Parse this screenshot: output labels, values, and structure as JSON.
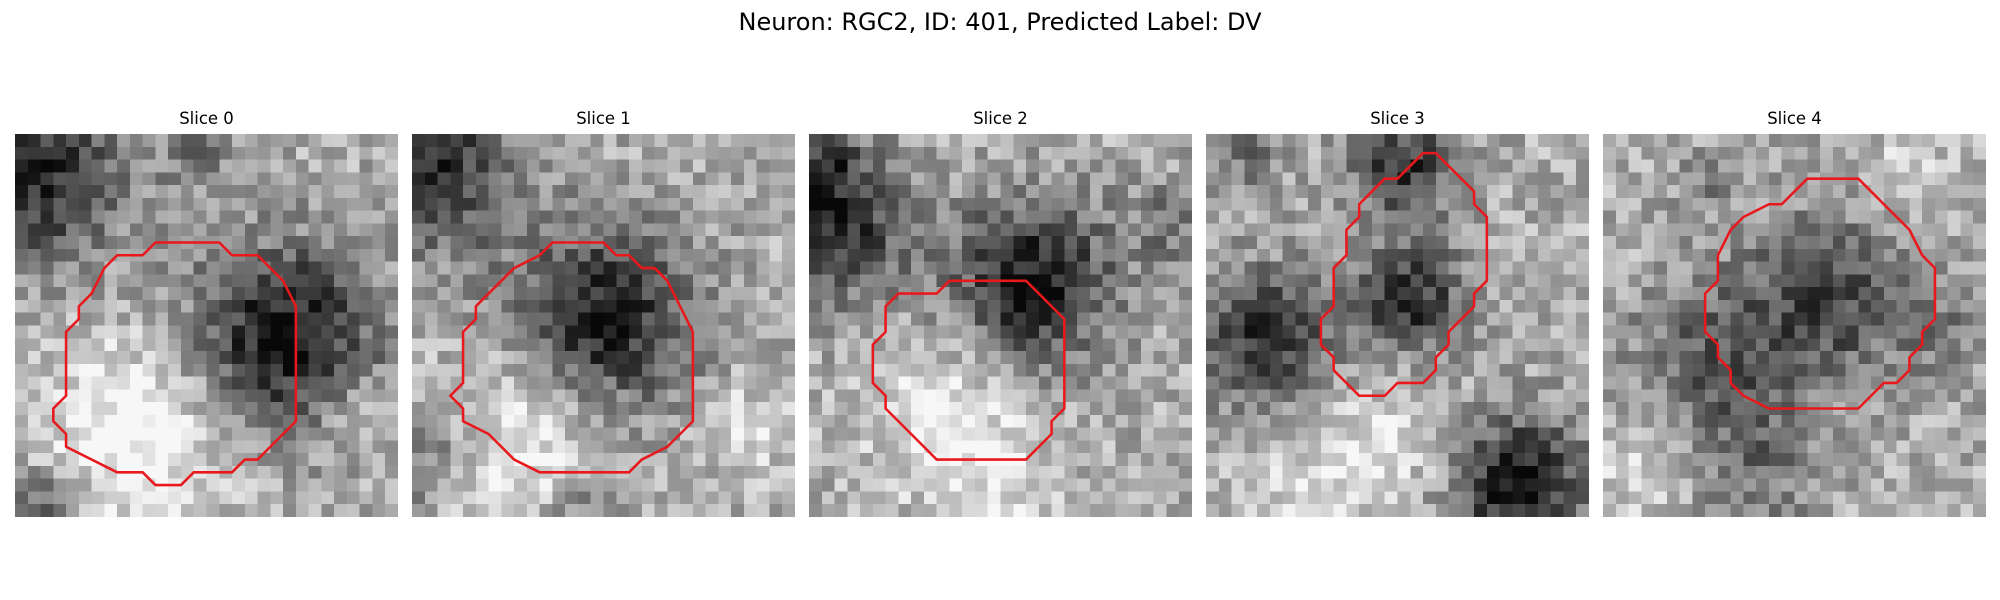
{
  "figure": {
    "title": "Neuron: RGC2, ID: 401, Predicted Label: DV"
  },
  "colors": {
    "contour": "#e8181c",
    "background": "#ffffff"
  },
  "grid_size": 30,
  "panels": [
    {
      "title": "Slice 0",
      "seed": 101,
      "blobs": [
        [
          21.0,
          16.0,
          8.2,
          0.62
        ],
        [
          1.5,
          3.0,
          8.0,
          0.55
        ],
        [
          2.5,
          29.0,
          4.0,
          0.35
        ],
        [
          14.5,
          1.5,
          3.0,
          0.2
        ]
      ],
      "brights": [
        [
          9.0,
          24.0,
          9.0,
          0.35
        ],
        [
          27.0,
          22.0,
          3.5,
          0.18
        ]
      ],
      "contour": [
        [
          11,
          8.5
        ],
        [
          16,
          8.5
        ],
        [
          17,
          9.5
        ],
        [
          19,
          9.5
        ],
        [
          21,
          11.5
        ],
        [
          22,
          13.5
        ],
        [
          22,
          22.5
        ],
        [
          20,
          24.5
        ],
        [
          19,
          25.5
        ],
        [
          18,
          25.5
        ],
        [
          17,
          26.5
        ],
        [
          14,
          26.5
        ],
        [
          13,
          27.5
        ],
        [
          11,
          27.5
        ],
        [
          10,
          26.5
        ],
        [
          8,
          26.5
        ],
        [
          4,
          24.5
        ],
        [
          4,
          23.5
        ],
        [
          3,
          22.5
        ],
        [
          3,
          21.5
        ],
        [
          4,
          20.5
        ],
        [
          4,
          15.5
        ],
        [
          5,
          14.5
        ],
        [
          5,
          13.5
        ],
        [
          6,
          12.5
        ],
        [
          7,
          10.5
        ],
        [
          8,
          9.5
        ],
        [
          10,
          9.5
        ]
      ]
    },
    {
      "title": "Slice 1",
      "seed": 211,
      "blobs": [
        [
          15.0,
          14.5,
          8.0,
          0.58
        ],
        [
          2.0,
          3.0,
          7.0,
          0.5
        ],
        [
          1.0,
          25.0,
          5.0,
          0.3
        ],
        [
          13.0,
          29.5,
          3.5,
          0.22
        ]
      ],
      "brights": [
        [
          8.0,
          24.0,
          8.0,
          0.3
        ],
        [
          26.0,
          23.0,
          4.0,
          0.2
        ]
      ],
      "contour": [
        [
          11,
          8.5
        ],
        [
          15,
          8.5
        ],
        [
          16,
          9.5
        ],
        [
          17,
          9.5
        ],
        [
          18,
          10.5
        ],
        [
          19,
          10.5
        ],
        [
          20,
          11.5
        ],
        [
          21,
          13.5
        ],
        [
          22,
          15.5
        ],
        [
          22,
          22.5
        ],
        [
          21,
          23.5
        ],
        [
          20,
          24.5
        ],
        [
          18,
          25.5
        ],
        [
          17,
          26.5
        ],
        [
          10,
          26.5
        ],
        [
          8,
          25.5
        ],
        [
          7,
          24.5
        ],
        [
          6,
          23.5
        ],
        [
          4,
          22.5
        ],
        [
          4,
          21.5
        ],
        [
          3,
          20.5
        ],
        [
          4,
          19.5
        ],
        [
          4,
          15.5
        ],
        [
          5,
          14.5
        ],
        [
          5,
          13.5
        ],
        [
          6,
          12.5
        ],
        [
          7,
          11.5
        ],
        [
          8,
          10.5
        ],
        [
          10,
          9.5
        ]
      ]
    },
    {
      "title": "Slice 2",
      "seed": 331,
      "blobs": [
        [
          17.5,
          11.5,
          7.0,
          0.6
        ],
        [
          2.0,
          7.0,
          6.5,
          0.55
        ],
        [
          1.5,
          1.5,
          3.0,
          0.25
        ],
        [
          28.5,
          7.0,
          4.0,
          0.2
        ]
      ],
      "brights": [
        [
          11.0,
          23.0,
          6.5,
          0.3
        ],
        [
          16.0,
          28.0,
          4.0,
          0.15
        ]
      ],
      "contour": [
        [
          11,
          11.5
        ],
        [
          17,
          11.5
        ],
        [
          18,
          12.5
        ],
        [
          19,
          13.5
        ],
        [
          20,
          14.5
        ],
        [
          20,
          21.5
        ],
        [
          19,
          22.5
        ],
        [
          19,
          23.5
        ],
        [
          18,
          24.5
        ],
        [
          17,
          25.5
        ],
        [
          10,
          25.5
        ],
        [
          9,
          24.5
        ],
        [
          8,
          23.5
        ],
        [
          7,
          22.5
        ],
        [
          6,
          21.5
        ],
        [
          6,
          20.5
        ],
        [
          5,
          19.5
        ],
        [
          5,
          16.5
        ],
        [
          6,
          15.5
        ],
        [
          6,
          13.5
        ],
        [
          7,
          12.5
        ],
        [
          10,
          12.5
        ]
      ]
    },
    {
      "title": "Slice 3",
      "seed": 443,
      "blobs": [
        [
          16.0,
          13.0,
          5.0,
          0.5
        ],
        [
          4.5,
          16.0,
          6.0,
          0.5
        ],
        [
          24.5,
          27.5,
          6.0,
          0.62
        ],
        [
          15.5,
          2.5,
          4.5,
          0.5
        ],
        [
          3.0,
          1.5,
          3.5,
          0.22
        ]
      ],
      "brights": [
        [
          15.0,
          24.0,
          6.0,
          0.2
        ],
        [
          8.0,
          28.0,
          5.0,
          0.2
        ]
      ],
      "contour": [
        [
          17,
          1.5
        ],
        [
          18,
          1.5
        ],
        [
          19,
          2.5
        ],
        [
          20,
          3.5
        ],
        [
          21,
          4.5
        ],
        [
          21,
          5.5
        ],
        [
          22,
          6.5
        ],
        [
          22,
          11.5
        ],
        [
          21,
          12.5
        ],
        [
          21,
          13.5
        ],
        [
          20,
          14.5
        ],
        [
          19,
          15.5
        ],
        [
          19,
          16.5
        ],
        [
          18,
          17.5
        ],
        [
          18,
          18.5
        ],
        [
          17,
          19.5
        ],
        [
          15,
          19.5
        ],
        [
          14,
          20.5
        ],
        [
          12,
          20.5
        ],
        [
          11,
          19.5
        ],
        [
          10,
          18.5
        ],
        [
          10,
          17.5
        ],
        [
          9,
          16.5
        ],
        [
          9,
          14.5
        ],
        [
          10,
          13.5
        ],
        [
          10,
          10.5
        ],
        [
          11,
          9.5
        ],
        [
          11,
          7.5
        ],
        [
          12,
          6.5
        ],
        [
          12,
          5.5
        ],
        [
          13,
          4.5
        ],
        [
          14,
          3.5
        ],
        [
          15,
          3.5
        ],
        [
          16,
          2.5
        ]
      ]
    },
    {
      "title": "Slice 4",
      "seed": 557,
      "blobs": [
        [
          17.5,
          13.0,
          7.5,
          0.42
        ],
        [
          8.0,
          17.5,
          6.5,
          0.3
        ],
        [
          12.0,
          25.5,
          6.0,
          0.25
        ],
        [
          27.0,
          16.0,
          3.5,
          0.18
        ],
        [
          8.0,
          4.0,
          3.0,
          0.15
        ]
      ],
      "brights": [
        [
          3.0,
          26.0,
          4.5,
          0.18
        ],
        [
          24.0,
          3.0,
          4.0,
          0.15
        ]
      ],
      "contour": [
        [
          16,
          3.5
        ],
        [
          20,
          3.5
        ],
        [
          21,
          4.5
        ],
        [
          22,
          5.5
        ],
        [
          24,
          7.5
        ],
        [
          25,
          9.5
        ],
        [
          26,
          10.5
        ],
        [
          26,
          14.5
        ],
        [
          25,
          15.5
        ],
        [
          25,
          16.5
        ],
        [
          24,
          17.5
        ],
        [
          24,
          18.5
        ],
        [
          23,
          19.5
        ],
        [
          22,
          19.5
        ],
        [
          21,
          20.5
        ],
        [
          20,
          21.5
        ],
        [
          17,
          21.5
        ],
        [
          13,
          21.5
        ],
        [
          11,
          20.5
        ],
        [
          10,
          19.5
        ],
        [
          10,
          18.5
        ],
        [
          9,
          17.5
        ],
        [
          9,
          16.5
        ],
        [
          8,
          15.5
        ],
        [
          8,
          12.5
        ],
        [
          9,
          11.5
        ],
        [
          9,
          9.5
        ],
        [
          10,
          7.5
        ],
        [
          11,
          6.5
        ],
        [
          13,
          5.5
        ],
        [
          14,
          5.5
        ],
        [
          15,
          4.5
        ]
      ]
    }
  ]
}
